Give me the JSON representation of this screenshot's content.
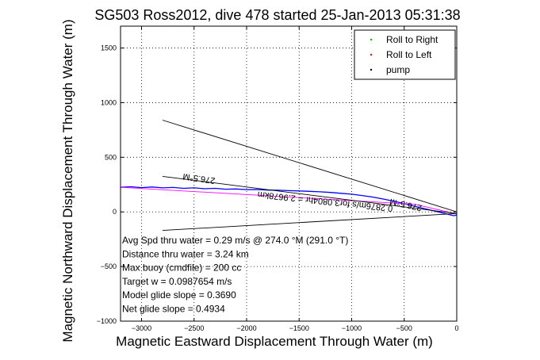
{
  "chart_data": {
    "type": "line",
    "title": "SG503 Ross2012, dive 478 started 25-Jan-2013 05:31:38",
    "xlabel": "Magnetic Eastward Displacement Through Water (m)",
    "ylabel": "Magnetic Northward Displacement Through Water (m)",
    "xlim": [
      -3200,
      0
    ],
    "ylim": [
      -1000,
      1700
    ],
    "x_ticks": [
      -3000,
      -2500,
      -2000,
      -1500,
      -1000,
      -500,
      0
    ],
    "y_ticks": [
      -1000,
      -500,
      0,
      500,
      1000,
      1500
    ],
    "x_tick_labels": [
      "−3000",
      "−2500",
      "−2000",
      "−1500",
      "−1000",
      "−500",
      "0"
    ],
    "y_tick_labels": [
      "−1000",
      "−500",
      "0",
      "500",
      "1000",
      "1500"
    ],
    "grid": true,
    "legend_position": "top-right",
    "legend": [
      {
        "label": "Roll to Right",
        "color": "#00cc00",
        "marker": "."
      },
      {
        "label": "Roll to Left",
        "color": "#ff0000",
        "marker": "."
      },
      {
        "label": "pump",
        "color": "#000000",
        "marker": "."
      }
    ],
    "series": [
      {
        "style": "track",
        "color": "#0000ff",
        "x": [
          -3200,
          -3100,
          -3000,
          -2900,
          -2800,
          -2700,
          -2600,
          -2500,
          -2400,
          -2300,
          -2200,
          -2100,
          -2000,
          -1900,
          -1800,
          -1700,
          -1600,
          -1500,
          -1400,
          -1300,
          -1200,
          -1100,
          -1000,
          -900,
          -800,
          -700,
          -600,
          -500,
          -400,
          -300,
          -200,
          -100,
          -30,
          0
        ],
        "y": [
          225,
          230,
          222,
          228,
          220,
          224,
          216,
          220,
          212,
          216,
          208,
          210,
          204,
          205,
          200,
          198,
          195,
          192,
          188,
          184,
          178,
          170,
          162,
          150,
          136,
          118,
          98,
          76,
          52,
          28,
          5,
          -18,
          -35,
          -30
        ]
      },
      {
        "style": "line",
        "color": "#ff00ff",
        "x": [
          -3200,
          -400,
          0
        ],
        "y": [
          225,
          70,
          -20
        ]
      },
      {
        "style": "line",
        "color": "#000000",
        "x": [
          -2800,
          0
        ],
        "y": [
          325,
          -15
        ]
      },
      {
        "style": "line",
        "color": "#000000",
        "x": [
          -2800,
          0
        ],
        "y": [
          840,
          0
        ]
      },
      {
        "style": "line",
        "color": "#000000",
        "x": [
          -2800,
          0
        ],
        "y": [
          -170,
          -15
        ]
      }
    ],
    "annotations": [
      {
        "text": "276.5°M",
        "x": -2450,
        "y": 330,
        "rotate": 188
      },
      {
        "text": "0.2876m/s for3.0804hr = 2.9678km",
        "x": -1250,
        "y": 120,
        "rotate": 186
      },
      {
        "text": "276.5°M",
        "x": -480,
        "y": 90,
        "rotate": 192
      }
    ],
    "info_lines": [
      "Avg Spd thru water =  0.29 m/s @ 274.0    °M (291.0 °T)",
      "Distance thru water =  3.24 km",
      "Max buoy (cmdfile) = 200 cc",
      "Target w = 0.0987654 m/s",
      "Model glide slope = 0.3690",
      "Net glide slope = 0.4934"
    ]
  }
}
